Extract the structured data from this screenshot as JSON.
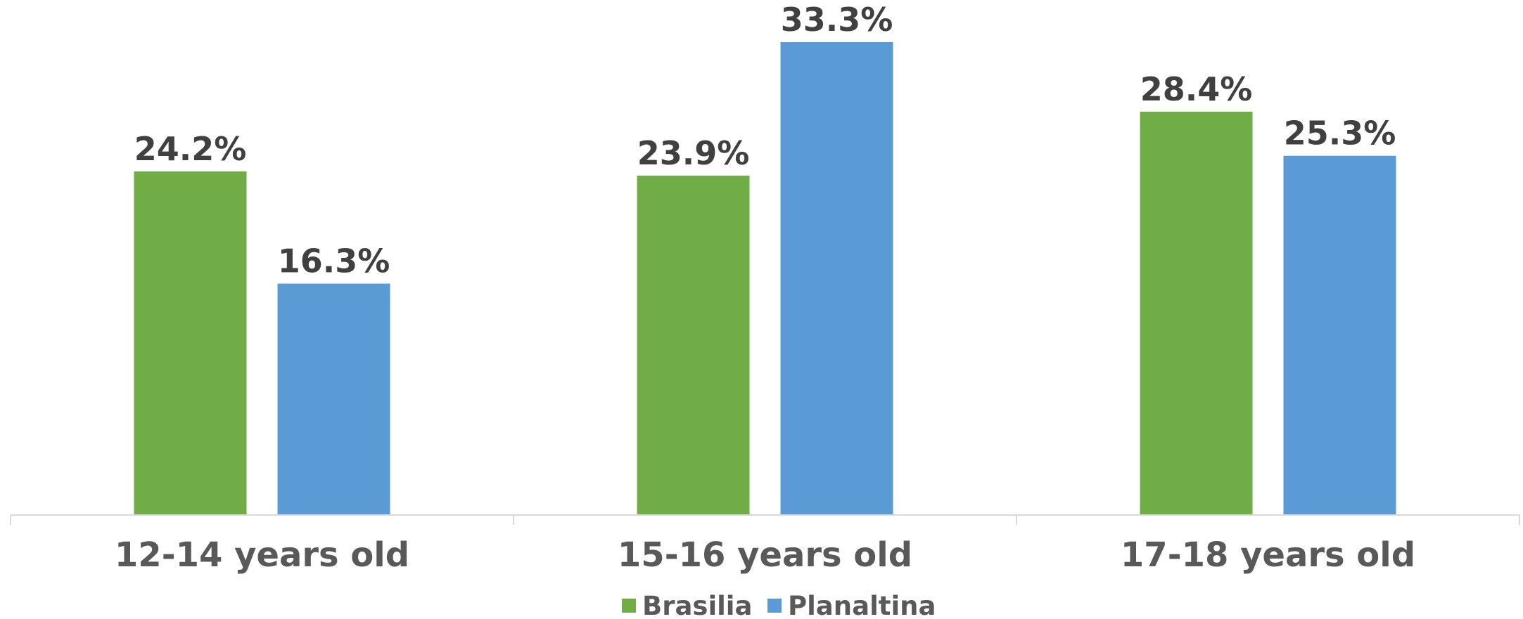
{
  "chart_data": {
    "type": "bar",
    "categories": [
      "12-14 years old",
      "15-16 years old",
      "17-18 years old"
    ],
    "series": [
      {
        "name": "Brasilia",
        "values": [
          24.2,
          23.9,
          28.4
        ],
        "labels": [
          "24.2%",
          "23.9%",
          "28.4%"
        ],
        "color": "#70ad47"
      },
      {
        "name": "Planaltina",
        "values": [
          16.3,
          33.3,
          25.3
        ],
        "labels": [
          "16.3%",
          "33.3%",
          "25.3%"
        ],
        "color": "#5b9bd5"
      }
    ],
    "ylim": [
      0,
      33.3
    ],
    "grid": false,
    "legend_position": "bottom"
  }
}
